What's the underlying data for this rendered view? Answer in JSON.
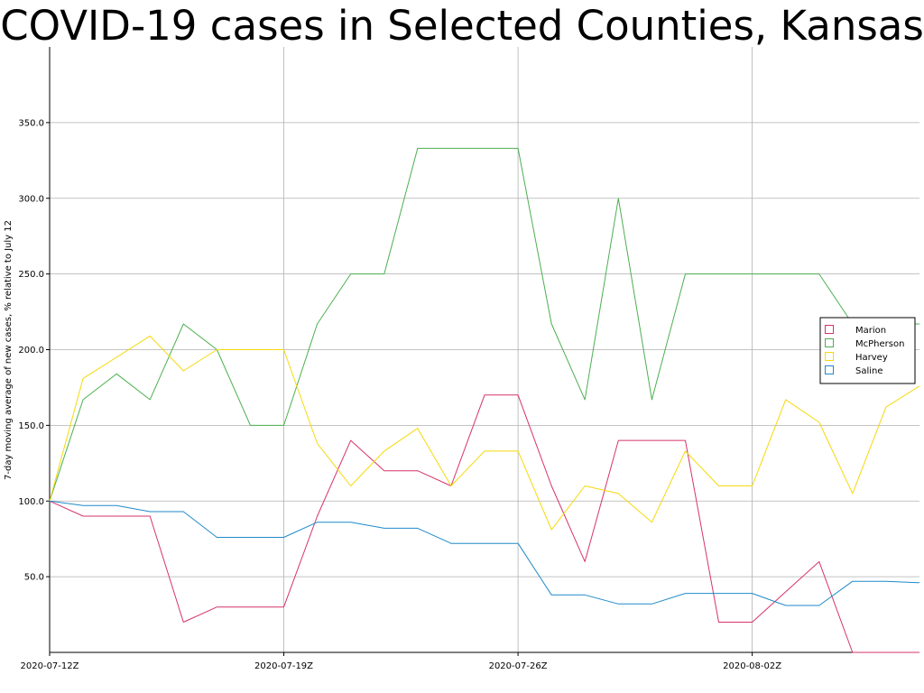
{
  "chart_data": {
    "type": "line",
    "title": "COVID-19 cases in Selected Counties, Kansas",
    "xlabel": "",
    "ylabel": "7-day moving average of new cases, % relative to July 12",
    "x": [
      "2020-07-12",
      "2020-07-13",
      "2020-07-14",
      "2020-07-15",
      "2020-07-16",
      "2020-07-17",
      "2020-07-18",
      "2020-07-19",
      "2020-07-20",
      "2020-07-21",
      "2020-07-22",
      "2020-07-23",
      "2020-07-24",
      "2020-07-25",
      "2020-07-26",
      "2020-07-27",
      "2020-07-28",
      "2020-07-29",
      "2020-07-30",
      "2020-07-31",
      "2020-08-01",
      "2020-08-02",
      "2020-08-03",
      "2020-08-04",
      "2020-08-05",
      "2020-08-06",
      "2020-08-07"
    ],
    "xticks": [
      "2020-07-12Z",
      "2020-07-19Z",
      "2020-07-26Z",
      "2020-08-02Z"
    ],
    "xtick_index": [
      0,
      7,
      14,
      21
    ],
    "ylim": [
      0,
      400
    ],
    "yticks": [
      "50.0",
      "100.0",
      "150.0",
      "200.0",
      "250.0",
      "300.0",
      "350.0"
    ],
    "ytick_values": [
      50,
      100,
      150,
      200,
      250,
      300,
      350
    ],
    "grid": true,
    "legend_position": "right",
    "series": [
      {
        "name": "Marion",
        "color": "#d6336c",
        "values": [
          100,
          90,
          90,
          90,
          20,
          30,
          30,
          30,
          90,
          140,
          120,
          120,
          110,
          170,
          170,
          110,
          60,
          140,
          140,
          140,
          20,
          20,
          40,
          60,
          0,
          0,
          0
        ]
      },
      {
        "name": "McPherson",
        "color": "#4caf50",
        "values": [
          100,
          167,
          184,
          167,
          217,
          200,
          150,
          150,
          217,
          250,
          250,
          333,
          333,
          333,
          333,
          217,
          167,
          300,
          167,
          250,
          250,
          250,
          250,
          250,
          217,
          217,
          217
        ]
      },
      {
        "name": "Harvey",
        "color": "#f5d90a",
        "values": [
          100,
          181,
          195,
          209,
          186,
          200,
          200,
          200,
          138,
          110,
          133,
          148,
          110,
          133,
          133,
          81,
          110,
          105,
          86,
          133,
          110,
          110,
          167,
          152,
          105,
          162,
          176
        ]
      },
      {
        "name": "Saline",
        "color": "#1f8ac9",
        "values": [
          100,
          97,
          97,
          93,
          93,
          76,
          76,
          76,
          86,
          86,
          82,
          82,
          72,
          72,
          72,
          38,
          38,
          32,
          32,
          39,
          39,
          39,
          31,
          31,
          47,
          47,
          46
        ]
      }
    ]
  }
}
